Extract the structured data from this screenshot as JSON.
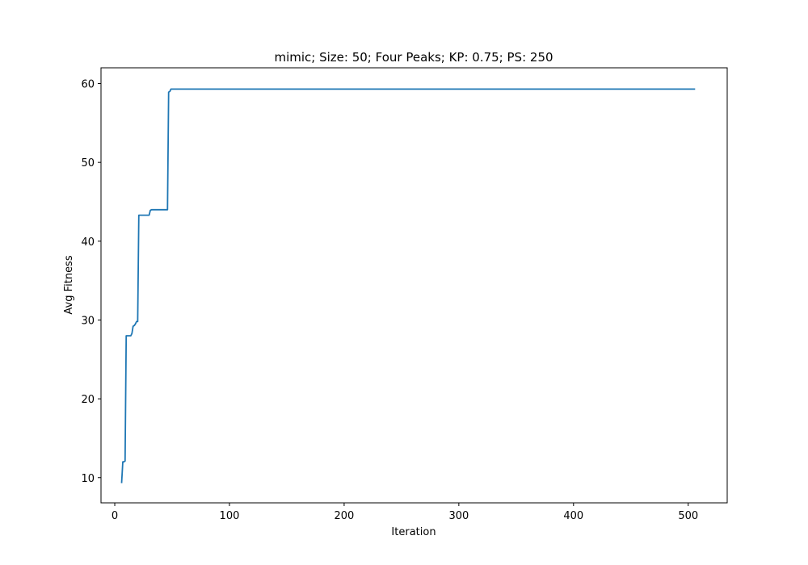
{
  "chart_data": {
    "type": "line",
    "title": "mimic; Size: 50; Four Peaks; KP: 0.75; PS: 250",
    "xlabel": "Iteration",
    "ylabel": "Avg Fitness",
    "xlim": [
      -12,
      534
    ],
    "ylim": [
      6.8,
      62.0
    ],
    "x_ticks": [
      0,
      100,
      200,
      300,
      400,
      500
    ],
    "y_ticks": [
      10,
      20,
      30,
      40,
      50,
      60
    ],
    "x_tick_labels": [
      "0",
      "100",
      "200",
      "300",
      "400",
      "500"
    ],
    "y_tick_labels": [
      "10",
      "20",
      "30",
      "40",
      "50",
      "60"
    ],
    "grid": false,
    "legend": "none",
    "line_color": "#1f77b4",
    "series": [
      {
        "x": [
          6,
          7,
          8,
          9,
          10,
          11,
          12,
          13,
          14,
          15,
          16,
          17,
          18,
          19,
          20,
          21,
          22,
          23,
          25,
          30,
          31,
          32,
          40,
          46,
          47,
          48,
          49,
          50,
          60,
          100,
          200,
          300,
          400,
          506
        ],
        "y": [
          9.3,
          12.0,
          12.0,
          12.1,
          28.0,
          28.0,
          28.0,
          28.0,
          28.0,
          28.3,
          29.2,
          29.3,
          29.5,
          29.8,
          29.8,
          43.3,
          43.3,
          43.3,
          43.3,
          43.3,
          43.9,
          44.0,
          44.0,
          44.0,
          58.9,
          59.0,
          59.3,
          59.3,
          59.3,
          59.3,
          59.3,
          59.3,
          59.3,
          59.3
        ]
      }
    ]
  }
}
